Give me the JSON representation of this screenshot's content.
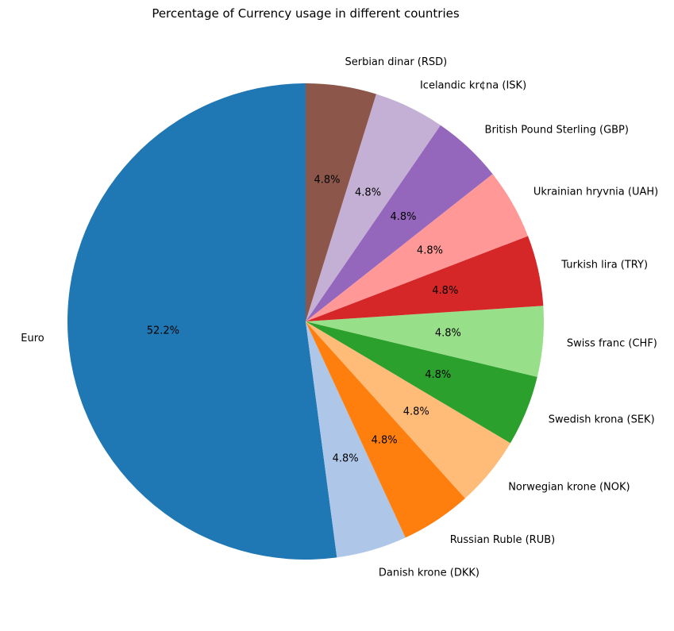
{
  "chart_data": {
    "type": "pie",
    "title": "Percentage of Currency usage in different countries",
    "start_angle_deg": 90,
    "direction": "counterclockwise",
    "slices": [
      {
        "label": "Euro",
        "value": 52.2,
        "pct_label": "52.2%",
        "color": "#1f77b4"
      },
      {
        "label": "Danish krone (DKK)",
        "value": 4.8,
        "pct_label": "4.8%",
        "color": "#aec7e8"
      },
      {
        "label": "Russian Ruble (RUB)",
        "value": 4.8,
        "pct_label": "4.8%",
        "color": "#ff7f0e"
      },
      {
        "label": "Norwegian krone (NOK)",
        "value": 4.8,
        "pct_label": "4.8%",
        "color": "#ffbb78"
      },
      {
        "label": "Swedish krona (SEK)",
        "value": 4.8,
        "pct_label": "4.8%",
        "color": "#2ca02c"
      },
      {
        "label": "Swiss franc (CHF)",
        "value": 4.8,
        "pct_label": "4.8%",
        "color": "#98df8a"
      },
      {
        "label": "Turkish lira (TRY)",
        "value": 4.8,
        "pct_label": "4.8%",
        "color": "#d62728"
      },
      {
        "label": "Ukrainian hryvnia (UAH)",
        "value": 4.8,
        "pct_label": "4.8%",
        "color": "#ff9896"
      },
      {
        "label": "British Pound Sterling (GBP)",
        "value": 4.8,
        "pct_label": "4.8%",
        "color": "#9467bd"
      },
      {
        "label": "Icelandic kr¢na (ISK)",
        "value": 4.8,
        "pct_label": "4.8%",
        "color": "#c5b0d5"
      },
      {
        "label": "Serbian dinar (RSD)",
        "value": 4.8,
        "pct_label": "4.8%",
        "color": "#8c564b"
      }
    ]
  }
}
